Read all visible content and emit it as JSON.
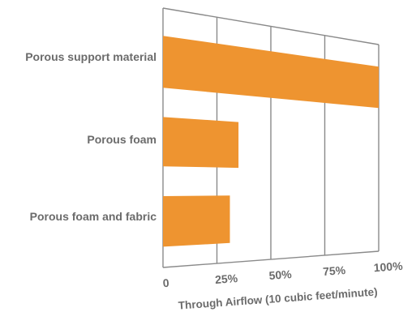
{
  "chart_data": {
    "type": "bar",
    "orientation": "horizontal",
    "categories": [
      "Porous support material",
      "Porous foam",
      "Porous foam and fabric"
    ],
    "values": [
      100,
      35,
      31
    ],
    "xlabel": "Through Airflow (10 cubic feet/minute)",
    "ylabel": "",
    "xlim": [
      0,
      100
    ],
    "xticks": [
      0,
      25,
      50,
      75,
      100
    ],
    "xtick_labels": [
      "0",
      "25%",
      "50%",
      "75%",
      "100%"
    ],
    "grid": true,
    "legend": "none",
    "colors": {
      "bar": "#ee9430",
      "grid": "#8a8a8a",
      "text": "#6b6b6b"
    }
  }
}
